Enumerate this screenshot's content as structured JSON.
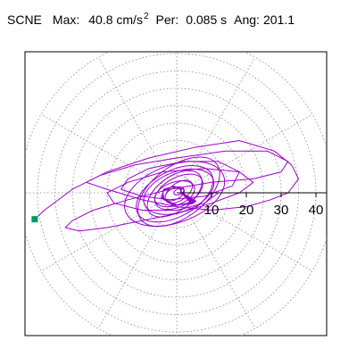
{
  "header": {
    "station": "SCNE",
    "max_label": "Max:",
    "max_value": "40.8 cm/s",
    "max_exp": "2",
    "per_label": "Per:",
    "per_value": "0.085 s",
    "ang_label": "Ang:",
    "ang_value": "201.1"
  },
  "chart_data": {
    "type": "polar-orbit",
    "radial_ticks": [
      10,
      20,
      30,
      40
    ],
    "radial_tick_labels": [
      "10",
      "20",
      "30",
      "40"
    ],
    "rmax": 45,
    "radial_rings": [
      5,
      10,
      15,
      20,
      25,
      30,
      35,
      40,
      45
    ],
    "spoke_angles_deg": [
      0,
      30,
      60,
      90,
      120,
      150,
      180,
      210,
      240,
      270,
      300,
      330
    ],
    "grid": true,
    "colors": {
      "trace": "#9900cc",
      "grid": "#888888",
      "axis": "#000000",
      "marker": "#009966"
    },
    "peak_marker": {
      "x": -40.8,
      "y": -7.6
    },
    "trace_outer": [
      [
        -40.8,
        -7.6
      ],
      [
        -38,
        -5
      ],
      [
        -30,
        1
      ],
      [
        -20,
        6
      ],
      [
        -8,
        10
      ],
      [
        5,
        13
      ],
      [
        18,
        15
      ],
      [
        28,
        12
      ],
      [
        33,
        8
      ],
      [
        35,
        4
      ],
      [
        32,
        0
      ],
      [
        27,
        -2
      ],
      [
        20,
        -4
      ],
      [
        10,
        -5
      ],
      [
        0,
        -4
      ],
      [
        -10,
        -2
      ],
      [
        -20,
        1
      ],
      [
        -26,
        3
      ],
      [
        -22,
        5
      ],
      [
        -12,
        8
      ],
      [
        0,
        10
      ],
      [
        14,
        12
      ],
      [
        26,
        12
      ],
      [
        32,
        9
      ],
      [
        30,
        6
      ],
      [
        22,
        4
      ],
      [
        10,
        3
      ],
      [
        -2,
        1
      ],
      [
        -14,
        -2
      ],
      [
        -24,
        -5
      ],
      [
        -30,
        -8
      ],
      [
        -32,
        -10
      ],
      [
        -28,
        -11
      ],
      [
        -20,
        -10
      ],
      [
        -10,
        -8
      ],
      [
        0,
        -6
      ],
      [
        10,
        -3
      ],
      [
        18,
        0
      ],
      [
        22,
        3
      ],
      [
        18,
        6
      ],
      [
        8,
        7
      ],
      [
        -4,
        6
      ],
      [
        -14,
        3
      ],
      [
        -20,
        0
      ],
      [
        -18,
        -3
      ],
      [
        -10,
        -5
      ],
      [
        0,
        -5
      ],
      [
        8,
        -3
      ],
      [
        12,
        0
      ]
    ],
    "trace_mid": [
      [
        -14,
        4
      ],
      [
        -8,
        7
      ],
      [
        2,
        9
      ],
      [
        12,
        9
      ],
      [
        18,
        6
      ],
      [
        16,
        2
      ],
      [
        8,
        -1
      ],
      [
        -2,
        -2
      ],
      [
        -10,
        -1
      ],
      [
        -16,
        1
      ],
      [
        -14,
        4
      ]
    ],
    "trace_inner": {
      "rx": [
        1.5,
        3,
        4.5,
        6,
        7.5,
        9,
        10.5,
        12,
        13.5,
        15
      ],
      "ry_ratio": 0.55,
      "rotation_deg": 20
    }
  }
}
